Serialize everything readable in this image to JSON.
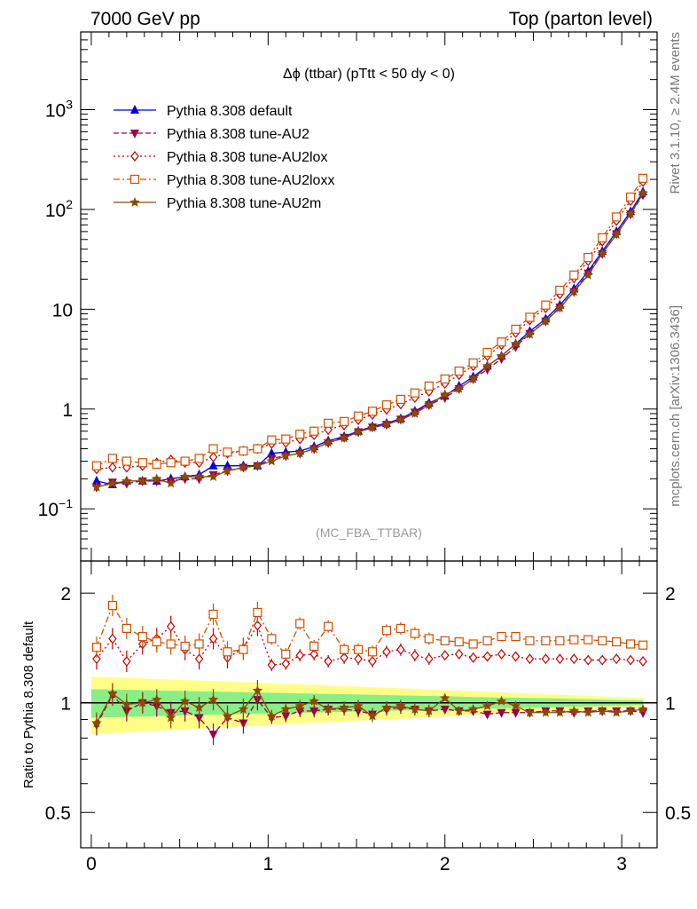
{
  "header": {
    "left": "7000 GeV pp",
    "right": "Top (parton level)"
  },
  "side_labels": {
    "rivet": "Rivet 3.1.10, ≥ 2.4M events",
    "mcplots": "mcplots.cern.ch [arXiv:1306.3436]"
  },
  "chart_data": [
    {
      "type": "line",
      "title": "Δϕ (ttbar) (pTtt < 50 dy < 0)",
      "watermark": "(MC_FBA_TTBAR)",
      "xlabel": "",
      "ylabel": "",
      "yscale": "log",
      "xlim": [
        -0.06,
        3.2
      ],
      "ylim": [
        0.03,
        6000
      ],
      "yticks": [
        {
          "value": 0.1,
          "label": "10",
          "sup": "−1"
        },
        {
          "value": 1,
          "label": "1",
          "sup": ""
        },
        {
          "value": 10,
          "label": "10",
          "sup": ""
        },
        {
          "value": 100,
          "label": "10",
          "sup": "2"
        },
        {
          "value": 1000,
          "label": "10",
          "sup": "3"
        }
      ],
      "legend_position": "top-left",
      "x": [
        0.03,
        0.12,
        0.2,
        0.29,
        0.37,
        0.45,
        0.53,
        0.61,
        0.69,
        0.77,
        0.86,
        0.94,
        1.02,
        1.1,
        1.18,
        1.26,
        1.34,
        1.43,
        1.51,
        1.59,
        1.67,
        1.75,
        1.83,
        1.91,
        2.0,
        2.08,
        2.16,
        2.24,
        2.32,
        2.4,
        2.48,
        2.57,
        2.65,
        2.73,
        2.81,
        2.89,
        2.97,
        3.05,
        3.12
      ],
      "series": [
        {
          "name": "Pythia 8.308 default",
          "color": "#0000e0",
          "marker": "triangle-up",
          "dash": "solid",
          "values": [
            0.19,
            0.175,
            0.19,
            0.19,
            0.19,
            0.2,
            0.21,
            0.22,
            0.27,
            0.27,
            0.27,
            0.27,
            0.36,
            0.37,
            0.38,
            0.42,
            0.48,
            0.53,
            0.6,
            0.67,
            0.72,
            0.8,
            0.95,
            1.15,
            1.35,
            1.7,
            2.1,
            2.7,
            3.4,
            4.5,
            6.0,
            8.0,
            11.0,
            16.0,
            24.0,
            38.0,
            60.0,
            95.0,
            150.0
          ]
        },
        {
          "name": "Pythia 8.308 tune-AU2",
          "color": "#990044",
          "marker": "triangle-down",
          "dash": "6,3",
          "values": [
            0.165,
            0.185,
            0.18,
            0.19,
            0.19,
            0.19,
            0.2,
            0.2,
            0.22,
            0.24,
            0.26,
            0.27,
            0.32,
            0.34,
            0.36,
            0.4,
            0.46,
            0.52,
            0.59,
            0.66,
            0.7,
            0.79,
            0.93,
            1.1,
            1.3,
            1.6,
            2.0,
            2.5,
            3.2,
            4.2,
            5.7,
            7.6,
            10.5,
            15.0,
            23.0,
            36.0,
            57.0,
            90.0,
            140.0
          ]
        },
        {
          "name": "Pythia 8.308 tune-AU2lox",
          "color": "#c00000",
          "marker": "diamond",
          "dash": "2,3",
          "values": [
            0.25,
            0.26,
            0.26,
            0.27,
            0.29,
            0.31,
            0.29,
            0.29,
            0.33,
            0.36,
            0.38,
            0.4,
            0.45,
            0.46,
            0.5,
            0.55,
            0.62,
            0.69,
            0.78,
            0.88,
            0.99,
            1.12,
            1.3,
            1.5,
            1.8,
            2.2,
            2.7,
            3.4,
            4.4,
            5.8,
            7.8,
            10.3,
            14.2,
            20.5,
            30.5,
            48.0,
            77.0,
            122.0,
            190.0
          ]
        },
        {
          "name": "Pythia 8.308 tune-AU2loxx",
          "color": "#d05000",
          "marker": "square-open",
          "dash": "7,3,2,3",
          "values": [
            0.27,
            0.32,
            0.3,
            0.29,
            0.28,
            0.29,
            0.3,
            0.32,
            0.4,
            0.37,
            0.38,
            0.4,
            0.49,
            0.5,
            0.56,
            0.6,
            0.72,
            0.75,
            0.85,
            0.95,
            1.1,
            1.25,
            1.45,
            1.7,
            2.0,
            2.4,
            2.9,
            3.7,
            4.7,
            6.3,
            8.3,
            11.0,
            15.5,
            22.0,
            33.0,
            52.0,
            84.0,
            133.0,
            205.0
          ]
        },
        {
          "name": "Pythia 8.308 tune-AU2m",
          "color": "#8b4a00",
          "marker": "star",
          "dash": "solid",
          "values": [
            0.165,
            0.18,
            0.19,
            0.19,
            0.2,
            0.18,
            0.21,
            0.21,
            0.21,
            0.24,
            0.26,
            0.27,
            0.3,
            0.34,
            0.36,
            0.4,
            0.46,
            0.51,
            0.59,
            0.65,
            0.7,
            0.78,
            0.9,
            1.1,
            1.4,
            1.6,
            2.0,
            2.7,
            3.4,
            4.5,
            5.6,
            7.6,
            10.3,
            15.0,
            22.0,
            36.0,
            56.0,
            90.0,
            145.0
          ]
        }
      ]
    },
    {
      "type": "line",
      "title": "",
      "xlabel": "",
      "ylabel": "Ratio to Pythia 8.308 default",
      "yscale": "log",
      "xlim": [
        -0.06,
        3.2
      ],
      "ylim": [
        0.4,
        2.45
      ],
      "xticks": [
        0,
        1,
        2,
        3
      ],
      "yticks": [
        0.5,
        1,
        2
      ],
      "reference_line": 1,
      "band_yellow_halfwidth": [
        0.18,
        0.17,
        0.16,
        0.15,
        0.14,
        0.13,
        0.12,
        0.11,
        0.1,
        0.09,
        0.08,
        0.07,
        0.06,
        0.05,
        0.04,
        0.03
      ],
      "band_green_halfwidth": [
        0.09,
        0.085,
        0.08,
        0.075,
        0.07,
        0.065,
        0.06,
        0.055,
        0.05,
        0.045,
        0.04,
        0.035,
        0.03,
        0.025,
        0.02,
        0.015
      ],
      "series": [
        {
          "name": "Pythia 8.308 tune-AU2",
          "color": "#990044",
          "marker": "triangle-down",
          "dash": "6,3",
          "values": [
            0.87,
            1.05,
            0.95,
            1.0,
            0.98,
            0.94,
            0.95,
            0.91,
            0.82,
            0.91,
            0.88,
            1.02,
            0.91,
            0.92,
            0.95,
            0.95,
            0.96,
            0.96,
            0.95,
            0.93,
            0.96,
            0.97,
            0.96,
            0.95,
            0.96,
            0.95,
            0.95,
            0.93,
            0.94,
            0.94,
            0.94,
            0.95,
            0.95,
            0.94,
            0.95,
            0.95,
            0.95,
            0.95,
            0.94
          ]
        },
        {
          "name": "Pythia 8.308 tune-AU2lox",
          "color": "#c00000",
          "marker": "diamond",
          "dash": "2,3",
          "values": [
            1.32,
            1.5,
            1.3,
            1.45,
            1.5,
            1.62,
            1.4,
            1.32,
            1.5,
            1.33,
            1.41,
            1.63,
            1.27,
            1.28,
            1.35,
            1.36,
            1.3,
            1.33,
            1.32,
            1.3,
            1.38,
            1.4,
            1.35,
            1.32,
            1.35,
            1.36,
            1.33,
            1.34,
            1.36,
            1.34,
            1.32,
            1.32,
            1.32,
            1.32,
            1.31,
            1.31,
            1.32,
            1.31,
            1.3
          ]
        },
        {
          "name": "Pythia 8.308 tune-AU2loxx",
          "color": "#d05000",
          "marker": "square-open",
          "dash": "7,3,2,3",
          "values": [
            1.42,
            1.85,
            1.6,
            1.52,
            1.47,
            1.45,
            1.43,
            1.45,
            1.75,
            1.38,
            1.4,
            1.77,
            1.5,
            1.36,
            1.65,
            1.43,
            1.62,
            1.4,
            1.4,
            1.38,
            1.58,
            1.6,
            1.55,
            1.5,
            1.48,
            1.47,
            1.45,
            1.48,
            1.52,
            1.52,
            1.48,
            1.48,
            1.48,
            1.49,
            1.49,
            1.48,
            1.47,
            1.45,
            1.44
          ]
        },
        {
          "name": "Pythia 8.308 tune-AU2m",
          "color": "#8b4a00",
          "marker": "star",
          "dash": "solid",
          "values": [
            0.88,
            1.06,
            0.99,
            1.0,
            1.02,
            0.91,
            1.01,
            0.97,
            1.02,
            0.92,
            0.96,
            1.08,
            0.92,
            0.96,
            0.98,
            1.01,
            0.96,
            0.97,
            0.98,
            0.92,
            0.97,
            0.98,
            0.96,
            0.95,
            1.03,
            0.95,
            0.96,
            0.98,
            1.01,
            0.98,
            0.94,
            0.94,
            0.94,
            0.95,
            0.94,
            0.95,
            0.94,
            0.95,
            0.96
          ]
        }
      ]
    }
  ]
}
